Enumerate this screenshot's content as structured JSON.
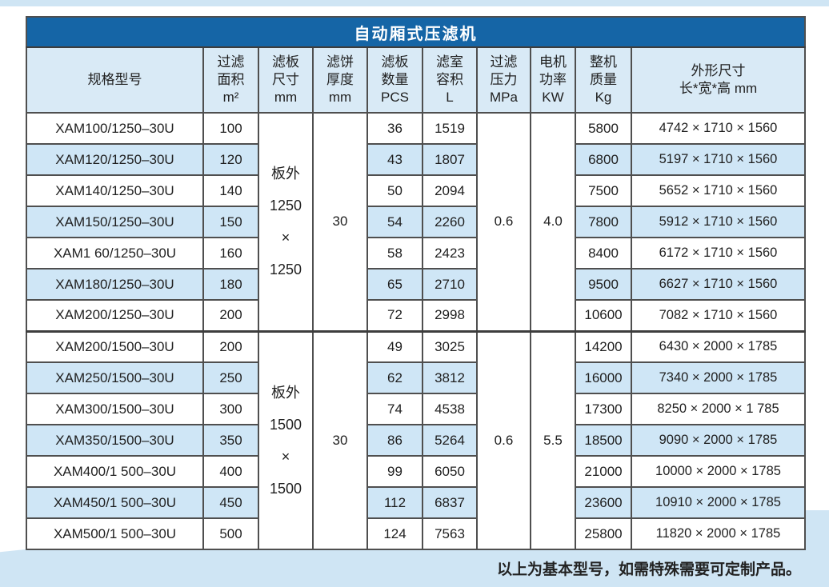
{
  "page": {
    "top_strip_color": "#cfe5f4",
    "bottom_band_color": "#cfe5f4",
    "note": "以上为基本型号，如需特殊需要可定制产品。"
  },
  "table": {
    "title": "自动厢式压滤机",
    "title_bg": "#1565a6",
    "header_bg": "#d9eaf6",
    "stripe_bg": "#cfe6f6",
    "border_color": "#4f4f4f",
    "columns": [
      {
        "id": "model",
        "lines": [
          "规格型号"
        ]
      },
      {
        "id": "area",
        "lines": [
          "过滤",
          "面积",
          "m²"
        ]
      },
      {
        "id": "plate-size",
        "lines": [
          "滤板",
          "尺寸",
          "mm"
        ]
      },
      {
        "id": "cake-thickness",
        "lines": [
          "滤饼",
          "厚度",
          "mm"
        ]
      },
      {
        "id": "plate-count",
        "lines": [
          "滤板",
          "数量",
          "PCS"
        ]
      },
      {
        "id": "chamber-volume",
        "lines": [
          "滤室",
          "容积",
          "L"
        ]
      },
      {
        "id": "filter-pressure",
        "lines": [
          "过滤",
          "压力",
          "MPa"
        ]
      },
      {
        "id": "motor-power",
        "lines": [
          "电机",
          "功率",
          "KW"
        ]
      },
      {
        "id": "machine-weight",
        "lines": [
          "整机",
          "质量",
          "Kg"
        ]
      },
      {
        "id": "dimensions",
        "lines": [
          "外形尺寸",
          "长*宽*高 mm"
        ]
      }
    ],
    "groups": [
      {
        "plate_size_lines": [
          "板外",
          "1250",
          "×",
          "1250"
        ],
        "cake_thickness": "30",
        "pressure": "0.6",
        "power": "4.0",
        "rows": [
          {
            "model": "XAM100/1250–30U",
            "area": "100",
            "pcs": "36",
            "volume": "1519",
            "weight": "5800",
            "dims": "4742 × 1710 × 1560"
          },
          {
            "model": "XAM120/1250–30U",
            "area": "120",
            "pcs": "43",
            "volume": "1807",
            "weight": "6800",
            "dims": "5197  × 1710 × 1560"
          },
          {
            "model": "XAM140/1250–30U",
            "area": "140",
            "pcs": "50",
            "volume": "2094",
            "weight": "7500",
            "dims": "5652 × 1710 × 1560"
          },
          {
            "model": "XAM150/1250–30U",
            "area": "150",
            "pcs": "54",
            "volume": "2260",
            "weight": "7800",
            "dims": "5912 × 1710 × 1560"
          },
          {
            "model": "XAM1 60/1250–30U",
            "area": "160",
            "pcs": "58",
            "volume": "2423",
            "weight": "8400",
            "dims": "6172 × 1710 × 1560"
          },
          {
            "model": "XAM180/1250–30U",
            "area": "180",
            "pcs": "65",
            "volume": "2710",
            "weight": "9500",
            "dims": "6627 × 1710 × 1560"
          },
          {
            "model": "XAM200/1250–30U",
            "area": "200",
            "pcs": "72",
            "volume": "2998",
            "weight": "10600",
            "dims": "7082 × 1710 × 1560"
          }
        ]
      },
      {
        "plate_size_lines": [
          "板外",
          "1500",
          "×",
          "1500"
        ],
        "cake_thickness": "30",
        "pressure": "0.6",
        "power": "5.5",
        "rows": [
          {
            "model": "XAM200/1500–30U",
            "area": "200",
            "pcs": "49",
            "volume": "3025",
            "weight": "14200",
            "dims": "6430 × 2000 × 1785"
          },
          {
            "model": "XAM250/1500–30U",
            "area": "250",
            "pcs": "62",
            "volume": "3812",
            "weight": "16000",
            "dims": "7340 × 2000 × 1785"
          },
          {
            "model": "XAM300/1500–30U",
            "area": "300",
            "pcs": "74",
            "volume": "4538",
            "weight": "17300",
            "dims": "8250 ×  2000 × 1 785"
          },
          {
            "model": "XAM350/1500–30U",
            "area": "350",
            "pcs": "86",
            "volume": "5264",
            "weight": "18500",
            "dims": "9090 × 2000 ×  1785"
          },
          {
            "model": "XAM400/1 500–30U",
            "area": "400",
            "pcs": "99",
            "volume": "6050",
            "weight": "21000",
            "dims": "10000 × 2000 × 1785"
          },
          {
            "model": "XAM450/1 500–30U",
            "area": "450",
            "pcs": "112",
            "volume": "6837",
            "weight": "23600",
            "dims": "10910 × 2000 × 1785"
          },
          {
            "model": "XAM500/1 500–30U",
            "area": "500",
            "pcs": "124",
            "volume": "7563",
            "weight": "25800",
            "dims": "11820 × 2000 × 1785"
          }
        ]
      }
    ]
  }
}
